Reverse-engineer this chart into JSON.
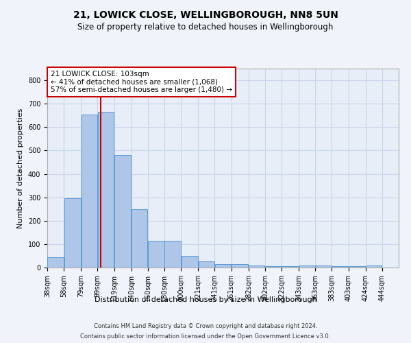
{
  "title": "21, LOWICK CLOSE, WELLINGBOROUGH, NN8 5UN",
  "subtitle": "Size of property relative to detached houses in Wellingborough",
  "xlabel": "Distribution of detached houses by size in Wellingborough",
  "ylabel": "Number of detached properties",
  "footer_line1": "Contains HM Land Registry data © Crown copyright and database right 2024.",
  "footer_line2": "Contains public sector information licensed under the Open Government Licence v3.0.",
  "annotation_line1": "21 LOWICK CLOSE: 103sqm",
  "annotation_line2": "← 41% of detached houses are smaller (1,068)",
  "annotation_line3": "57% of semi-detached houses are larger (1,480) →",
  "property_size": 103,
  "bar_left_edges": [
    38,
    58,
    79,
    99,
    119,
    140,
    160,
    180,
    200,
    221,
    241,
    261,
    282,
    302,
    322,
    343,
    363,
    383,
    403,
    424
  ],
  "bar_widths": [
    20,
    21,
    20,
    20,
    21,
    20,
    20,
    20,
    21,
    20,
    20,
    21,
    20,
    20,
    21,
    20,
    20,
    20,
    21,
    20
  ],
  "bar_heights": [
    45,
    295,
    655,
    665,
    480,
    250,
    113,
    113,
    50,
    27,
    15,
    15,
    8,
    5,
    5,
    8,
    8,
    5,
    5,
    8
  ],
  "tick_labels": [
    "38sqm",
    "58sqm",
    "79sqm",
    "99sqm",
    "119sqm",
    "140sqm",
    "160sqm",
    "180sqm",
    "200sqm",
    "221sqm",
    "241sqm",
    "261sqm",
    "282sqm",
    "302sqm",
    "322sqm",
    "343sqm",
    "363sqm",
    "383sqm",
    "403sqm",
    "424sqm",
    "444sqm"
  ],
  "bar_color": "#aec6e8",
  "bar_edge_color": "#5b9bd5",
  "red_line_color": "#cc0000",
  "annotation_box_color": "#cc0000",
  "grid_color": "#c8d4e8",
  "bg_color": "#e8eef8",
  "fig_bg_color": "#f0f4fa",
  "ylim": [
    0,
    850
  ],
  "yticks": [
    0,
    100,
    200,
    300,
    400,
    500,
    600,
    700,
    800
  ],
  "title_fontsize": 10,
  "subtitle_fontsize": 8.5,
  "ylabel_fontsize": 8,
  "xlabel_fontsize": 8,
  "tick_fontsize": 7,
  "annot_fontsize": 7.5,
  "footer_fontsize": 6
}
